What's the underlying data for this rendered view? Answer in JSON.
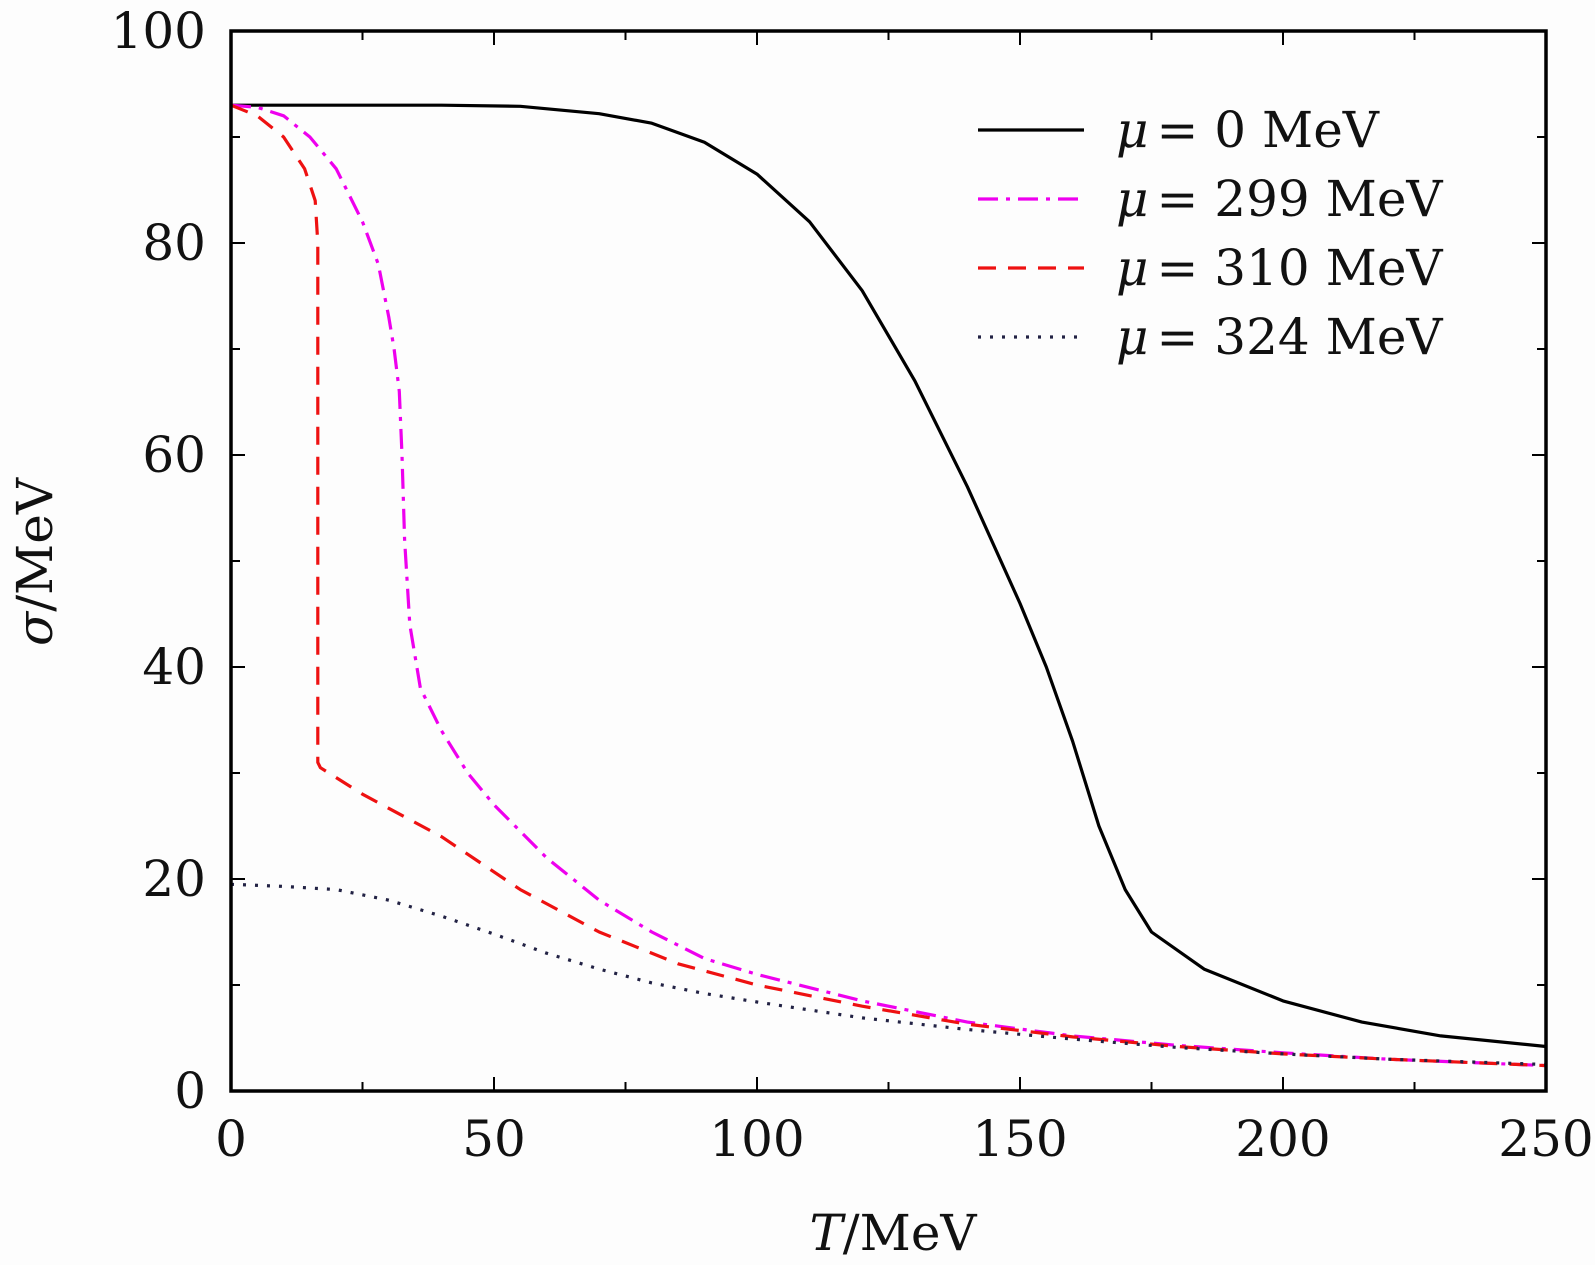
{
  "chart_data": {
    "type": "line",
    "xlabel_var": "T",
    "xlabel_unit": "/MeV",
    "ylabel_var": "σ",
    "ylabel_unit": "/MeV",
    "xlim": [
      0,
      250
    ],
    "ylim": [
      0,
      100
    ],
    "x_ticks": [
      "0",
      "50",
      "100",
      "150",
      "200",
      "250"
    ],
    "y_ticks": [
      "0",
      "20",
      "40",
      "60",
      "80",
      "100"
    ],
    "x_minor_ticks": [
      25,
      75,
      125,
      175,
      225
    ],
    "y_minor_ticks": [
      10,
      30,
      50,
      70,
      90
    ],
    "grid": false,
    "legend_position": "top-right",
    "series": [
      {
        "name": "μ = 0 MeV",
        "legend_var": "μ",
        "legend_value": "= 0  MeV",
        "color": "#000000",
        "dash": "none",
        "points": [
          [
            0,
            93
          ],
          [
            20,
            93
          ],
          [
            40,
            93
          ],
          [
            55,
            92.9
          ],
          [
            70,
            92.2
          ],
          [
            80,
            91.3
          ],
          [
            90,
            89.5
          ],
          [
            100,
            86.5
          ],
          [
            110,
            82
          ],
          [
            120,
            75.5
          ],
          [
            130,
            67
          ],
          [
            140,
            57
          ],
          [
            150,
            46
          ],
          [
            155,
            40
          ],
          [
            160,
            33
          ],
          [
            165,
            25
          ],
          [
            170,
            19
          ],
          [
            175,
            15
          ],
          [
            185,
            11.5
          ],
          [
            200,
            8.5
          ],
          [
            215,
            6.5
          ],
          [
            230,
            5.2
          ],
          [
            250,
            4.2
          ]
        ]
      },
      {
        "name": "μ = 299 MeV",
        "legend_var": "μ",
        "legend_value": "= 299  MeV",
        "color": "#ee00ee",
        "dash": "20 8 4 8",
        "points": [
          [
            0,
            93
          ],
          [
            5,
            92.8
          ],
          [
            10,
            92
          ],
          [
            15,
            90
          ],
          [
            20,
            87
          ],
          [
            25,
            82
          ],
          [
            28,
            78
          ],
          [
            30,
            73
          ],
          [
            31,
            70
          ],
          [
            32,
            66
          ],
          [
            32.5,
            60
          ],
          [
            33,
            52
          ],
          [
            34,
            44
          ],
          [
            36,
            38
          ],
          [
            40,
            34
          ],
          [
            45,
            30
          ],
          [
            50,
            27
          ],
          [
            60,
            22
          ],
          [
            70,
            18
          ],
          [
            80,
            15
          ],
          [
            90,
            12.5
          ],
          [
            100,
            11
          ],
          [
            120,
            8.5
          ],
          [
            140,
            6.5
          ],
          [
            160,
            5.2
          ],
          [
            180,
            4.3
          ],
          [
            200,
            3.6
          ],
          [
            220,
            3.0
          ],
          [
            250,
            2.4
          ]
        ]
      },
      {
        "name": "μ = 310 MeV",
        "legend_var": "μ",
        "legend_value": "= 310  MeV",
        "color": "#ee1111",
        "dash": "18 12",
        "points": [
          [
            0,
            93
          ],
          [
            5,
            92
          ],
          [
            10,
            90
          ],
          [
            14,
            87
          ],
          [
            16,
            84
          ],
          [
            16.5,
            80
          ],
          [
            16.5,
            31
          ],
          [
            17,
            30.5
          ],
          [
            25,
            28
          ],
          [
            40,
            24
          ],
          [
            55,
            19
          ],
          [
            70,
            15
          ],
          [
            85,
            12
          ],
          [
            100,
            10
          ],
          [
            120,
            8
          ],
          [
            140,
            6.3
          ],
          [
            160,
            5.1
          ],
          [
            180,
            4.2
          ],
          [
            200,
            3.5
          ],
          [
            220,
            3.0
          ],
          [
            250,
            2.4
          ]
        ]
      },
      {
        "name": "μ = 324 MeV",
        "legend_var": "μ",
        "legend_value": "= 324  MeV",
        "color": "#222244",
        "dash": "3 9",
        "points": [
          [
            0,
            19.5
          ],
          [
            10,
            19.3
          ],
          [
            20,
            19
          ],
          [
            30,
            18
          ],
          [
            40,
            16.5
          ],
          [
            50,
            14.8
          ],
          [
            60,
            13
          ],
          [
            70,
            11.5
          ],
          [
            80,
            10.2
          ],
          [
            90,
            9.2
          ],
          [
            100,
            8.4
          ],
          [
            120,
            6.9
          ],
          [
            140,
            5.8
          ],
          [
            160,
            4.9
          ],
          [
            180,
            4.1
          ],
          [
            200,
            3.5
          ],
          [
            220,
            3.0
          ],
          [
            250,
            2.5
          ]
        ]
      }
    ]
  }
}
